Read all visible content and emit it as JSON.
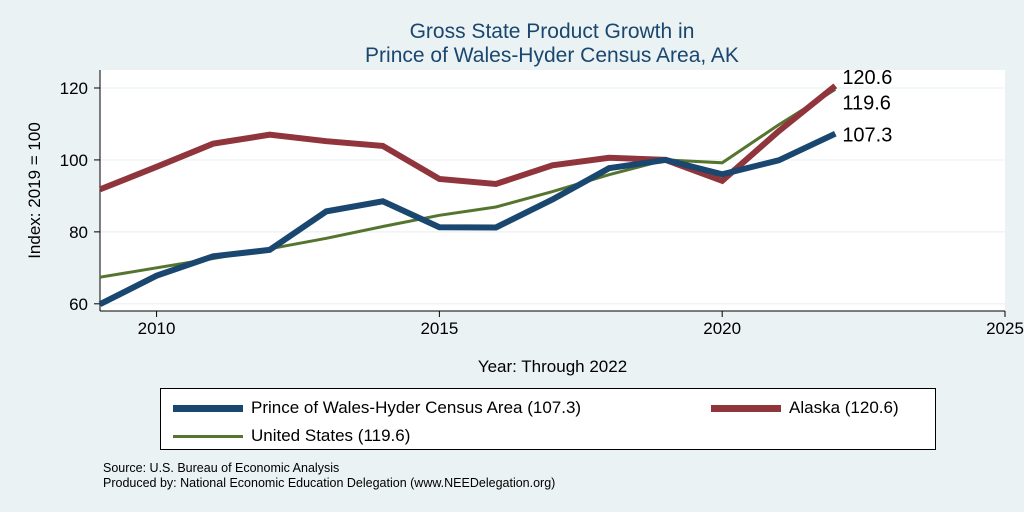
{
  "colors": {
    "background": "#eaf2f3",
    "plot_background": "#ffffff",
    "title": "#1a476f",
    "gridline": "#eaf2f3"
  },
  "chart_data": {
    "type": "line",
    "title": [
      "Gross State Product Growth in",
      "Prince of Wales-Hyder Census Area, AK"
    ],
    "xlabel": "Year: Through 2022",
    "ylabel": "Index: 2019 = 100",
    "xlim": [
      2009,
      2025
    ],
    "ylim": [
      58,
      125
    ],
    "xticks": [
      2010,
      2015,
      2020,
      2025
    ],
    "yticks": [
      60,
      80,
      100,
      120
    ],
    "grid": true,
    "x": [
      2009,
      2010,
      2011,
      2012,
      2013,
      2014,
      2015,
      2016,
      2017,
      2018,
      2019,
      2020,
      2021,
      2022
    ],
    "series": [
      {
        "name": "Prince of Wales-Hyder Census Area",
        "legend_label": "Prince of Wales-Hyder Census Area (107.3)",
        "color": "#1a476f",
        "line_width": "thick",
        "values": [
          59.9,
          67.8,
          73.2,
          75.0,
          85.7,
          88.5,
          81.3,
          81.2,
          89.0,
          97.7,
          100,
          96.0,
          99.9,
          107.3
        ],
        "end_label": "107.3"
      },
      {
        "name": "Alaska",
        "legend_label": "Alaska (120.6)",
        "color": "#90353b",
        "line_width": "thick",
        "values": [
          91.8,
          98.1,
          104.5,
          107.0,
          105.2,
          103.9,
          94.7,
          93.3,
          98.5,
          100.6,
          100,
          94.2,
          108.0,
          120.6
        ],
        "end_label": "120.6"
      },
      {
        "name": "United States",
        "legend_label": "United States (119.6)",
        "color": "#55752f",
        "line_width": "thin",
        "values": [
          67.4,
          70.0,
          72.6,
          75.3,
          78.2,
          81.5,
          84.6,
          86.9,
          91.2,
          95.9,
          100,
          99.2,
          109.8,
          119.6
        ],
        "end_label": "119.6"
      }
    ],
    "legend": "bottom, outside plot, boxed",
    "source_note": "Source: U.S. Bureau of Economic Analysis",
    "producer_note": "Produced by: National Economic Education Delegation (www.NEEDelegation.org)"
  }
}
